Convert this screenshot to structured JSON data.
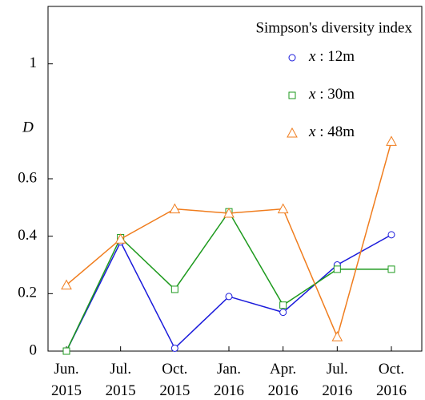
{
  "chart_data": {
    "type": "line",
    "ylabel": "D",
    "legend_title": "Simpson's diversity index",
    "categories": [
      "Jun. 2015",
      "Jul. 2015",
      "Oct. 2015",
      "Jan. 2016",
      "Apr. 2016",
      "Jul. 2016",
      "Oct. 2016"
    ],
    "series": [
      {
        "name": "x : 12m",
        "color": "#1a1adb",
        "marker": "circle",
        "values": [
          0,
          0.38,
          0.01,
          0.19,
          0.135,
          0.3,
          0.405
        ]
      },
      {
        "name": "x : 30m",
        "color": "#1e9a1e",
        "marker": "square",
        "values": [
          0,
          0.395,
          0.215,
          0.485,
          0.16,
          0.285,
          0.285
        ]
      },
      {
        "name": "x : 48m",
        "color": "#f07d1e",
        "marker": "triangle",
        "values": [
          0.23,
          0.39,
          0.495,
          0.48,
          0.495,
          0.05,
          0.73
        ]
      }
    ],
    "ylim": [
      0,
      1.2
    ],
    "yticks": [
      0,
      0.2,
      0.4,
      0.6,
      1
    ],
    "legend": "upper right"
  }
}
